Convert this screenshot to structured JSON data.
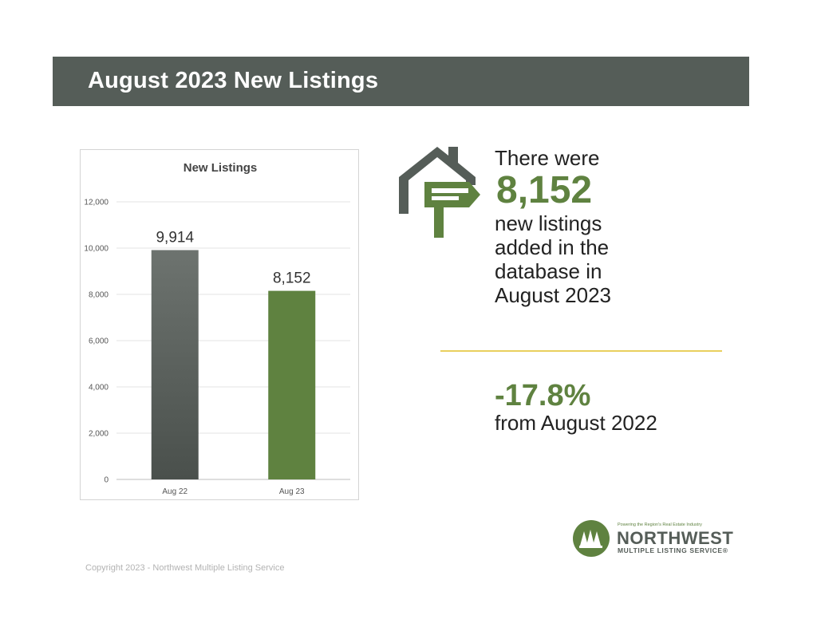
{
  "banner": {
    "title": "August 2023 New Listings"
  },
  "chart_data": {
    "type": "bar",
    "title": "New Listings",
    "categories": [
      "Aug 22",
      "Aug 23"
    ],
    "values": [
      9914,
      8152
    ],
    "value_labels": [
      "9,914",
      "8,152"
    ],
    "ylim": [
      0,
      12000
    ],
    "yticks": [
      0,
      2000,
      4000,
      6000,
      8000,
      10000,
      12000
    ],
    "ytick_labels": [
      "0",
      "2,000",
      "4,000",
      "6,000",
      "8,000",
      "10,000",
      "12,000"
    ],
    "grid": true,
    "bar_colors": [
      "#5a5f5c",
      "#5f8240"
    ]
  },
  "stat": {
    "line1": "There were",
    "value": "8,152",
    "line2": "new listings",
    "line3": "added in the",
    "line4": "database in",
    "line5": "August 2023"
  },
  "change": {
    "value": "-17.8%",
    "caption": "from August 2022"
  },
  "icons": {
    "house": "house-signpost-icon"
  },
  "logo": {
    "tagline": "Powering the Region's Real Estate Industry",
    "name": "NORTHWEST",
    "subname": "MULTIPLE LISTING SERVICE",
    "mark": "®"
  },
  "footer": {
    "copyright": "Copyright 2023 - Northwest Multiple Listing Service"
  },
  "colors": {
    "banner": "#555d58",
    "accent_green": "#5f8240",
    "divider_gold": "#e9cf5e"
  }
}
